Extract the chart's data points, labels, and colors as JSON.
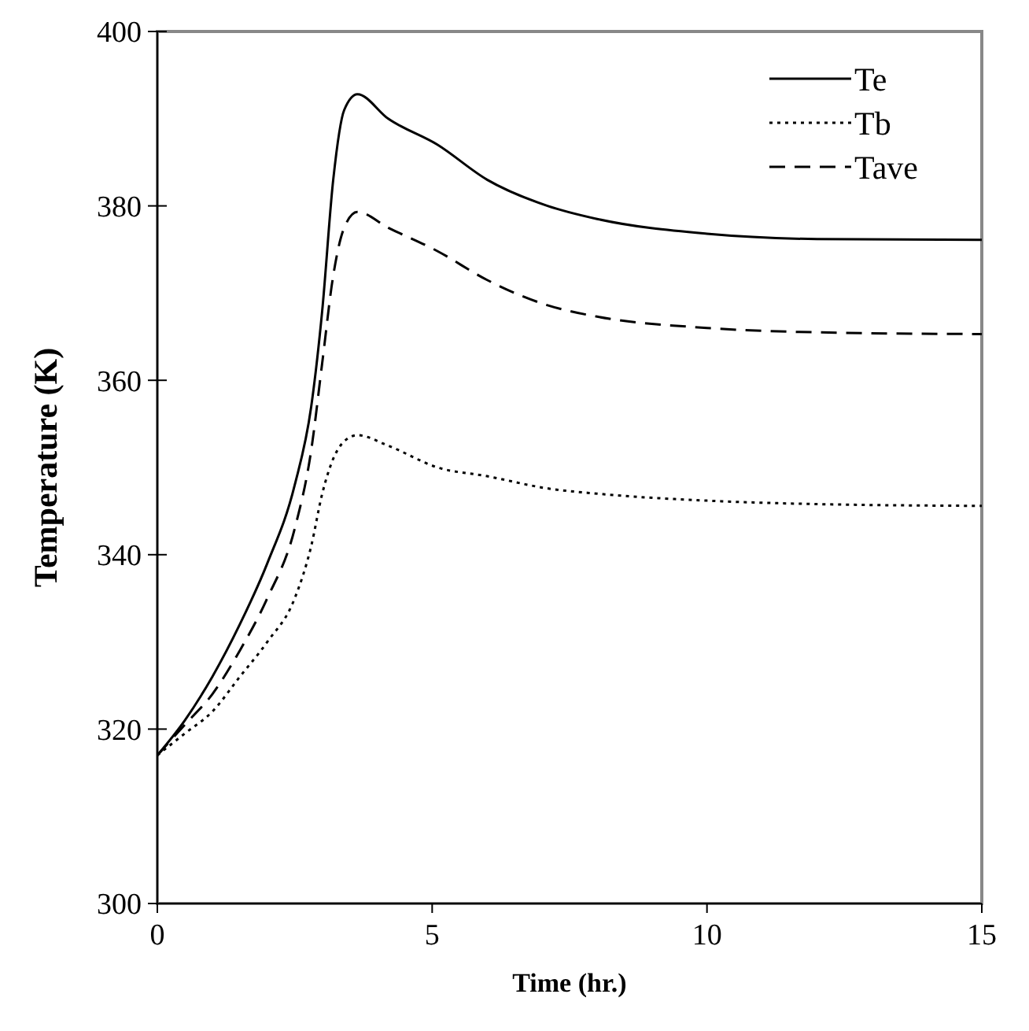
{
  "chart_data": {
    "type": "line",
    "xlabel": "Time (hr.)",
    "ylabel": "Temperature (K)",
    "xlim": [
      0,
      15
    ],
    "xticks": [
      0,
      5,
      10,
      15
    ],
    "ylim": [
      300,
      400
    ],
    "yticks": [
      300,
      320,
      340,
      360,
      380,
      400
    ],
    "grid": false,
    "legend": "top right",
    "x": [
      0,
      0.5,
      1,
      1.5,
      2,
      2.5,
      2.8,
      3,
      3.2,
      3.4,
      3.64,
      4.2,
      5.1,
      6,
      7.1,
      8,
      10,
      12,
      15
    ],
    "series": [
      {
        "name": "Te",
        "color": "#000000",
        "line_style": "solid",
        "values": [
          317,
          321,
          326,
          332,
          339,
          348,
          357,
          368,
          383,
          391,
          392.8,
          390,
          387,
          383,
          380,
          378.5,
          376.8,
          376.2,
          376.1
        ]
      },
      {
        "name": "Tb",
        "color": "#000000",
        "line_style": "dotted",
        "values": [
          317,
          319.5,
          322,
          326,
          330,
          335,
          341,
          347,
          351,
          353,
          353.7,
          352.5,
          350,
          349,
          347.6,
          347,
          346.2,
          345.8,
          345.6
        ]
      },
      {
        "name": "Tave",
        "color": "#000000",
        "line_style": "dashed",
        "values": [
          317,
          320.5,
          324,
          329,
          335,
          343,
          352,
          362,
          372,
          377.5,
          379.3,
          377.5,
          374.8,
          371.5,
          368.6,
          367.3,
          366,
          365.5,
          365.3
        ]
      }
    ]
  }
}
